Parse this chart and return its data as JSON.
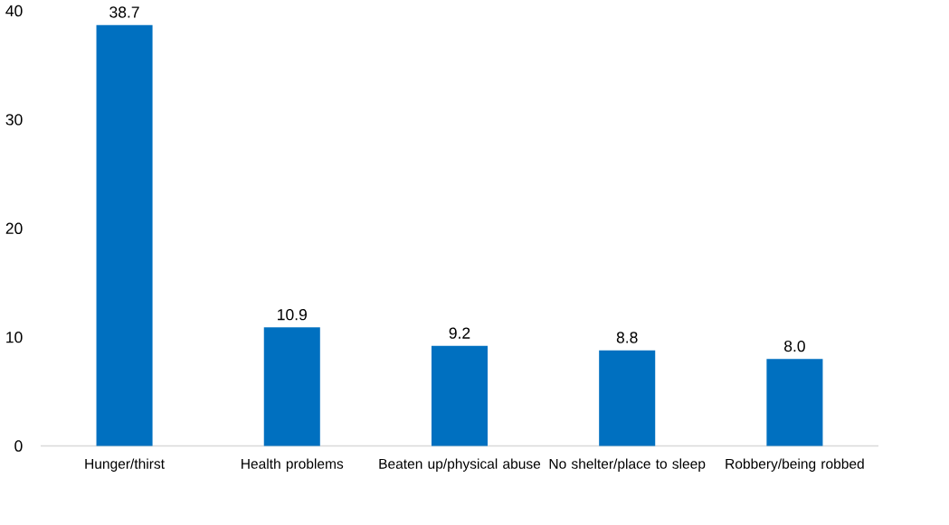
{
  "chart_data": {
    "type": "bar",
    "categories": [
      "Hunger/thirst",
      "Health problems",
      "Beaten up/physical abuse",
      "No shelter/place to sleep",
      "Robbery/being robbed"
    ],
    "values": [
      38.7,
      10.9,
      9.2,
      8.8,
      8.0
    ],
    "value_labels": [
      "38.7",
      "10.9",
      "9.2",
      "8.8",
      "8.0"
    ],
    "color": "#0070c0",
    "ylim": [
      0,
      40
    ],
    "yticks": [
      0,
      10,
      20,
      30,
      40
    ]
  }
}
